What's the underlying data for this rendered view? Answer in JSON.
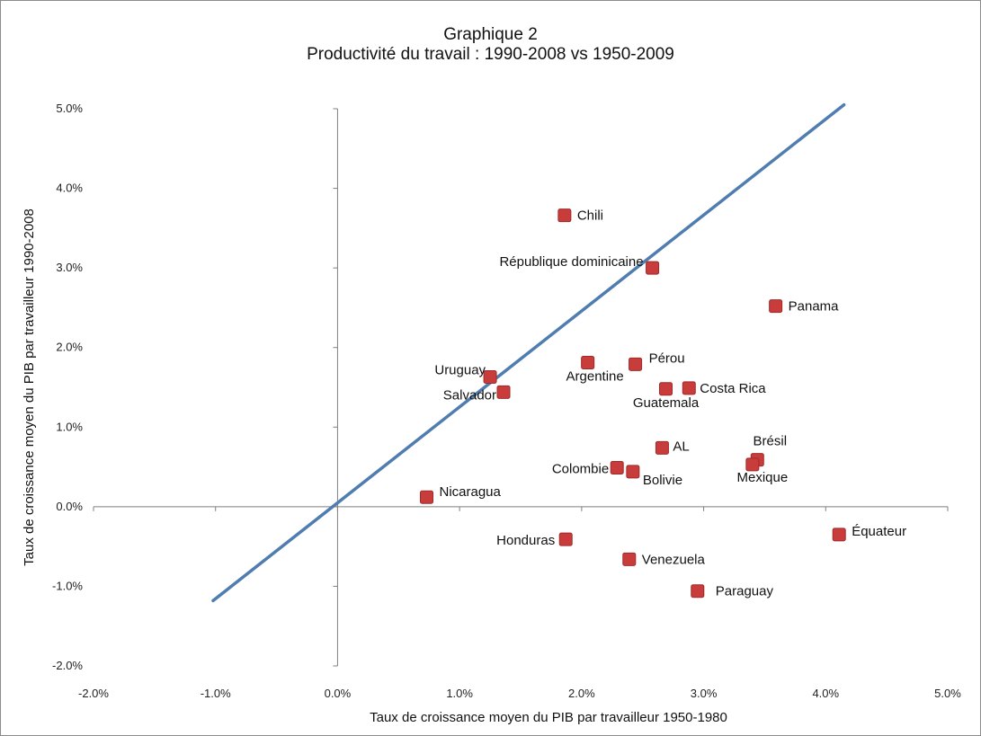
{
  "chart_data": {
    "type": "scatter",
    "title": "Graphique 2",
    "subtitle": "Productivité du travail : 1990-2008 vs 1950-2009",
    "xlabel": "Taux de croissance moyen du PIB par travailleur 1950-1980",
    "ylabel": "Taux de croissance moyen du PIB par travailleur 1990-2008",
    "xlim": [
      -0.02,
      0.05
    ],
    "ylim": [
      -0.02,
      0.05
    ],
    "x_ticks": [
      "-2.0%",
      "-1.0%",
      "0.0%",
      "1.0%",
      "2.0%",
      "3.0%",
      "4.0%",
      "5.0%"
    ],
    "y_ticks": [
      "-2.0%",
      "-1.0%",
      "0.0%",
      "1.0%",
      "2.0%",
      "3.0%",
      "4.0%",
      "5.0%"
    ],
    "grid": false,
    "marker_color": "#c83c3c",
    "line_color": "#4f7db0",
    "reference_line": {
      "x": [
        -0.0102,
        0.0415
      ],
      "y": [
        -0.0118,
        0.0505
      ]
    },
    "points": [
      {
        "label": "Chili",
        "x": 0.0186,
        "y": 0.0366
      },
      {
        "label": "République dominicaine",
        "x": 0.0258,
        "y": 0.03
      },
      {
        "label": "Panama",
        "x": 0.0359,
        "y": 0.0252
      },
      {
        "label": "Uruguay",
        "x": 0.0125,
        "y": 0.0163
      },
      {
        "label": "Salvador",
        "x": 0.0136,
        "y": 0.0144
      },
      {
        "label": "Argentine",
        "x": 0.0205,
        "y": 0.0181
      },
      {
        "label": "Pérou",
        "x": 0.0244,
        "y": 0.0179
      },
      {
        "label": "Guatemala",
        "x": 0.0269,
        "y": 0.0148
      },
      {
        "label": "Costa Rica",
        "x": 0.0288,
        "y": 0.0149
      },
      {
        "label": "AL",
        "x": 0.0266,
        "y": 0.0074
      },
      {
        "label": "Brésil",
        "x": 0.0344,
        "y": 0.0059
      },
      {
        "label": "Mexique",
        "x": 0.034,
        "y": 0.0053
      },
      {
        "label": "Colombie",
        "x": 0.0229,
        "y": 0.0049
      },
      {
        "label": "Bolivie",
        "x": 0.0242,
        "y": 0.0044
      },
      {
        "label": "Nicaragua",
        "x": 0.0073,
        "y": 0.0012
      },
      {
        "label": "Honduras",
        "x": 0.0187,
        "y": -0.0041
      },
      {
        "label": "Venezuela",
        "x": 0.0239,
        "y": -0.0066
      },
      {
        "label": "Paraguay",
        "x": 0.0295,
        "y": -0.0106
      },
      {
        "label": "Équateur",
        "x": 0.0411,
        "y": -0.0035
      }
    ]
  }
}
